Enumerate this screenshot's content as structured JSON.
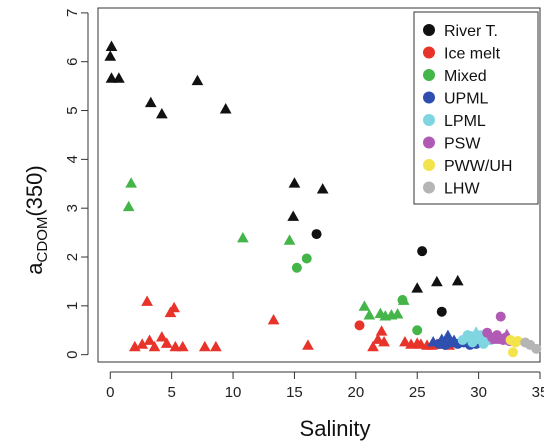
{
  "chart_data": {
    "type": "scatter",
    "xlabel": "Salinity",
    "ylabel_main": "a",
    "ylabel_sub": "CDOM",
    "ylabel_paren": "(350)",
    "xlim": [
      -1,
      35
    ],
    "ylim": [
      -0.15,
      7.1
    ],
    "xticks": [
      0,
      5,
      10,
      15,
      20,
      25,
      30,
      35
    ],
    "yticks": [
      0,
      1,
      2,
      3,
      4,
      5,
      6,
      7
    ],
    "grid": false,
    "legend": {
      "position": "top-right",
      "entries": [
        {
          "label": "River T.",
          "color": "#111111"
        },
        {
          "label": "Ice melt",
          "color": "#e8332a"
        },
        {
          "label": "Mixed",
          "color": "#44b548"
        },
        {
          "label": "UPML",
          "color": "#2e4fb0"
        },
        {
          "label": "LPML",
          "color": "#7fd6e0"
        },
        {
          "label": "PSW",
          "color": "#b05ab5"
        },
        {
          "label": "PWW/UH",
          "color": "#f2e44a"
        },
        {
          "label": "LHW",
          "color": "#b5b5b5"
        }
      ]
    },
    "series": [
      {
        "color": "#111111",
        "marker": "triangle",
        "points": [
          [
            0.1,
            6.3
          ],
          [
            0,
            6.1
          ],
          [
            0.1,
            5.65
          ],
          [
            0.7,
            5.65
          ],
          [
            3.3,
            5.15
          ],
          [
            4.2,
            4.92
          ],
          [
            7.1,
            5.6
          ],
          [
            9.4,
            5.02
          ],
          [
            15,
            3.5
          ],
          [
            17.3,
            3.38
          ],
          [
            14.9,
            2.82
          ],
          [
            25,
            1.35
          ],
          [
            26.6,
            1.48
          ],
          [
            28.3,
            1.5
          ]
        ]
      },
      {
        "color": "#111111",
        "marker": "circle",
        "points": [
          [
            16.8,
            2.47
          ],
          [
            25.4,
            2.12
          ],
          [
            27,
            0.88
          ]
        ]
      },
      {
        "color": "#e8332a",
        "marker": "triangle",
        "points": [
          [
            2,
            0.15
          ],
          [
            2.6,
            0.2
          ],
          [
            3,
            1.08
          ],
          [
            3.2,
            0.28
          ],
          [
            3.6,
            0.15
          ],
          [
            4.2,
            0.35
          ],
          [
            4.6,
            0.22
          ],
          [
            4.9,
            0.85
          ],
          [
            5.2,
            0.95
          ],
          [
            5.3,
            0.15
          ],
          [
            5.9,
            0.15
          ],
          [
            7.7,
            0.15
          ],
          [
            8.6,
            0.15
          ],
          [
            13.3,
            0.7
          ],
          [
            16.1,
            0.18
          ],
          [
            21.4,
            0.15
          ],
          [
            21.8,
            0.3
          ],
          [
            22.1,
            0.47
          ],
          [
            22.3,
            0.25
          ],
          [
            24,
            0.25
          ],
          [
            24.5,
            0.2
          ],
          [
            25,
            0.22
          ],
          [
            25.3,
            0.2
          ],
          [
            25.8,
            0.18
          ],
          [
            26.2,
            0.18
          ],
          [
            26.6,
            0.2
          ],
          [
            27.1,
            0.2
          ],
          [
            27.6,
            0.18
          ]
        ]
      },
      {
        "color": "#e8332a",
        "marker": "circle",
        "points": [
          [
            20.3,
            0.6
          ]
        ]
      },
      {
        "color": "#44b548",
        "marker": "triangle",
        "points": [
          [
            1.7,
            3.5
          ],
          [
            1.5,
            3.02
          ],
          [
            10.8,
            2.38
          ],
          [
            14.6,
            2.33
          ],
          [
            20.7,
            0.98
          ],
          [
            21.1,
            0.8
          ],
          [
            22,
            0.83
          ],
          [
            22.4,
            0.78
          ],
          [
            22.9,
            0.8
          ],
          [
            23.4,
            0.82
          ],
          [
            23.9,
            1.1
          ]
        ]
      },
      {
        "color": "#44b548",
        "marker": "circle",
        "points": [
          [
            15.2,
            1.78
          ],
          [
            16,
            1.97
          ],
          [
            23.8,
            1.12
          ],
          [
            25,
            0.5
          ]
        ]
      },
      {
        "color": "#2e4fb0",
        "marker": "triangle",
        "points": [
          [
            26.3,
            0.25
          ],
          [
            27,
            0.3
          ],
          [
            27.5,
            0.38
          ],
          [
            28,
            0.28
          ]
        ]
      },
      {
        "color": "#2e4fb0",
        "marker": "circle",
        "points": [
          [
            26.8,
            0.22
          ],
          [
            27.3,
            0.2
          ],
          [
            27.8,
            0.25
          ],
          [
            28.3,
            0.22
          ],
          [
            28.8,
            0.25
          ],
          [
            29.3,
            0.2
          ],
          [
            29.8,
            0.22
          ]
        ]
      },
      {
        "color": "#7fd6e0",
        "marker": "triangle",
        "points": [
          [
            29,
            0.35
          ],
          [
            29.8,
            0.45
          ],
          [
            30.3,
            0.3
          ]
        ]
      },
      {
        "color": "#7fd6e0",
        "marker": "circle",
        "points": [
          [
            28.7,
            0.3
          ],
          [
            29.1,
            0.4
          ],
          [
            29.5,
            0.25
          ],
          [
            29.9,
            0.35
          ],
          [
            30.2,
            0.4
          ],
          [
            30.6,
            0.28
          ],
          [
            31,
            0.3
          ],
          [
            29.4,
            0.38
          ],
          [
            30.4,
            0.22
          ]
        ]
      },
      {
        "color": "#b05ab5",
        "marker": "circle",
        "points": [
          [
            30.7,
            0.45
          ],
          [
            31.1,
            0.35
          ],
          [
            31.5,
            0.4
          ],
          [
            31.8,
            0.78
          ],
          [
            32,
            0.3
          ],
          [
            32.2,
            0.35
          ],
          [
            32.5,
            0.28
          ]
        ]
      },
      {
        "color": "#b05ab5",
        "marker": "triangle",
        "points": [
          [
            31.4,
            0.3
          ],
          [
            32.3,
            0.4
          ]
        ]
      },
      {
        "color": "#f2e44a",
        "marker": "circle",
        "points": [
          [
            32.6,
            0.3
          ],
          [
            33,
            0.25
          ],
          [
            33.2,
            0.28
          ],
          [
            32.8,
            0.05
          ]
        ]
      },
      {
        "color": "#b5b5b5",
        "marker": "circle",
        "points": [
          [
            33.8,
            0.25
          ],
          [
            34.2,
            0.2
          ],
          [
            34.7,
            0.12
          ]
        ]
      }
    ]
  }
}
